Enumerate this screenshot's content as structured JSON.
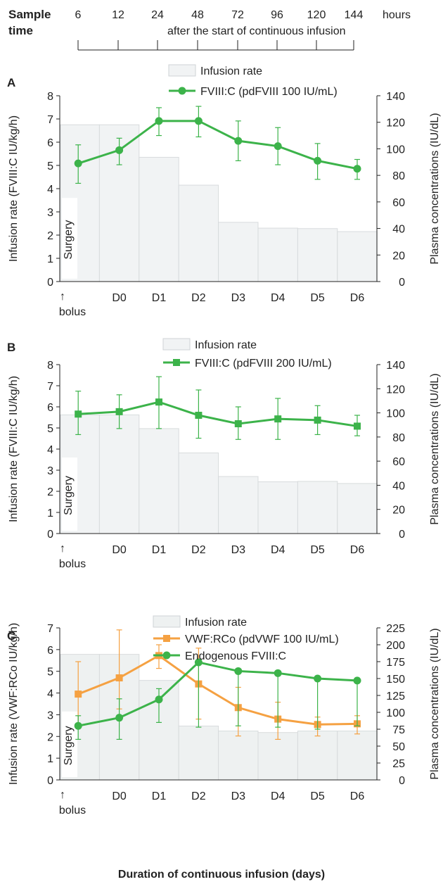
{
  "header": {
    "sample_label_1": "Sample",
    "sample_label_2": "time",
    "hours_label": "hours",
    "hour_ticks": [
      "6",
      "12",
      "24",
      "48",
      "72",
      "96",
      "120",
      "144"
    ],
    "after_text": "after the start of continuous infusion"
  },
  "footer": {
    "x_axis_title": "Duration of continuous infusion (days)"
  },
  "chart_data": [
    {
      "type": "bar",
      "panel": "A",
      "categories": [
        "D0",
        "D1",
        "D2",
        "D3",
        "D4",
        "D5",
        "D6"
      ],
      "bolus_label": "bolus",
      "arrow": "↑",
      "surgery_label": "Surgery",
      "ylabel": "Infusion rate (FVIII:C IU/kg/h)",
      "y2label": "Plasma concentrations (IU/dL)",
      "ylim": [
        0,
        8
      ],
      "y_ticks": [
        "0",
        "1",
        "2",
        "3",
        "4",
        "5",
        "6",
        "7",
        "8"
      ],
      "y2lim": [
        0,
        140
      ],
      "y2_ticks": [
        "0",
        "20",
        "40",
        "60",
        "80",
        "100",
        "120",
        "140"
      ],
      "legend": [
        "Infusion rate",
        "FVIII:C (pdFVIII 100 IU/mL)"
      ],
      "bars": {
        "name": "Infusion rate",
        "values": [
          6.75,
          5.35,
          4.15,
          2.55,
          2.3,
          2.28,
          2.15
        ]
      },
      "series": [
        {
          "name": "FVIII:C (pdFVIII 100 IU/mL)",
          "color": "#3cb34a",
          "marker": "circle",
          "x": [
            0,
            1,
            2,
            3,
            4,
            5,
            6,
            7
          ],
          "values": [
            89,
            99,
            121,
            121,
            106,
            102,
            91,
            85
          ],
          "err_low": [
            74,
            88,
            110,
            109,
            91,
            88,
            77,
            77
          ],
          "err_high": [
            103,
            108,
            131,
            132,
            121,
            116,
            104,
            92
          ]
        }
      ]
    },
    {
      "type": "bar",
      "panel": "B",
      "categories": [
        "D0",
        "D1",
        "D2",
        "D3",
        "D4",
        "D5",
        "D6"
      ],
      "bolus_label": "bolus",
      "arrow": "↑",
      "surgery_label": "Surgery",
      "ylabel": "Infusion rate (FVIII:C IU/kg/h)",
      "y2label": "Plasma concentrations (IU/dL)",
      "ylim": [
        0,
        8
      ],
      "y_ticks": [
        "0",
        "1",
        "2",
        "3",
        "4",
        "5",
        "6",
        "7",
        "8"
      ],
      "y2lim": [
        0,
        140
      ],
      "y2_ticks": [
        "0",
        "20",
        "40",
        "60",
        "80",
        "100",
        "120",
        "140"
      ],
      "legend": [
        "Infusion rate",
        "FVIII:C (pdFVIII 200 IU/mL)"
      ],
      "bars": {
        "name": "Infusion rate",
        "values": [
          5.62,
          4.97,
          3.82,
          2.7,
          2.45,
          2.47,
          2.37
        ]
      },
      "series": [
        {
          "name": "FVIII:C (pdFVIII 200 IU/mL)",
          "color": "#3cb34a",
          "marker": "square",
          "x": [
            0,
            1,
            2,
            3,
            4,
            5,
            6,
            7
          ],
          "values": [
            99,
            101,
            109,
            98,
            91,
            95,
            94,
            89
          ],
          "err_low": [
            82,
            87,
            87,
            79,
            78,
            78,
            82,
            81
          ],
          "err_high": [
            118,
            115,
            130,
            119,
            105,
            112,
            106,
            98
          ]
        }
      ]
    },
    {
      "type": "bar",
      "panel": "C",
      "categories": [
        "D0",
        "D1",
        "D2",
        "D3",
        "D4",
        "D5",
        "D6"
      ],
      "bolus_label": "bolus",
      "arrow": "↑",
      "surgery_label": "Surgery",
      "ylabel": "Infusion rate (VWF:RCo IU/kg/h)",
      "y2label": "Plasma concentrations (IU/dL)",
      "ylim": [
        0,
        7
      ],
      "y_ticks": [
        "0",
        "1",
        "2",
        "3",
        "4",
        "5",
        "6",
        "7"
      ],
      "y2lim": [
        0,
        225
      ],
      "y2_ticks": [
        "0",
        "25",
        "50",
        "75",
        "100",
        "125",
        "150",
        "175",
        "200",
        "225"
      ],
      "legend": [
        "Infusion rate",
        "VWF:RCo (pdVWF 100 IU/mL)",
        "Endogenous FVIII:C"
      ],
      "bars": {
        "name": "Infusion rate",
        "values": [
          5.78,
          4.58,
          2.48,
          2.25,
          2.18,
          2.25,
          2.25
        ]
      },
      "series": [
        {
          "name": "VWF:RCo (pdVWF 100 IU/mL)",
          "color": "#f5a142",
          "marker": "square",
          "x": [
            0,
            1,
            2,
            3,
            4,
            5,
            6,
            7
          ],
          "values": [
            127,
            151,
            184,
            142,
            107,
            90,
            82,
            83
          ],
          "err_low": [
            78,
            105,
            165,
            90,
            65,
            60,
            65,
            68
          ],
          "err_high": [
            175,
            222,
            200,
            195,
            137,
            115,
            93,
            95
          ]
        },
        {
          "name": "Endogenous FVIII:C",
          "color": "#3cb34a",
          "marker": "circle",
          "x": [
            0,
            1,
            2,
            3,
            4,
            5,
            6,
            7
          ],
          "values": [
            80,
            92,
            119,
            174,
            161,
            158,
            150,
            147
          ],
          "err_low": [
            60,
            60,
            85,
            78,
            80,
            78,
            75,
            80
          ],
          "err_high": [
            95,
            120,
            135,
            175,
            163,
            160,
            152,
            150
          ]
        }
      ]
    }
  ]
}
